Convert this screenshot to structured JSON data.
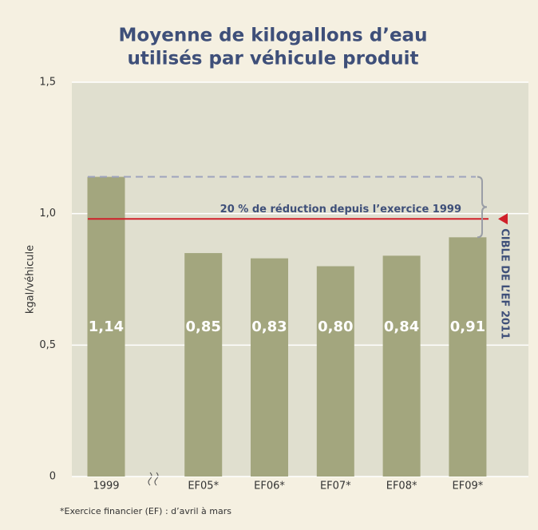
{
  "chart_data": {
    "type": "bar",
    "title": [
      "Moyenne de kilogallons d’eau",
      "utilisés par véhicule produit"
    ],
    "y_label": "kgal/véhicule",
    "categories": [
      "1999",
      "EF05*",
      "EF06*",
      "EF07*",
      "EF08*",
      "EF09*"
    ],
    "values": [
      1.14,
      0.85,
      0.83,
      0.8,
      0.84,
      0.91
    ],
    "value_labels": [
      "1,14",
      "0,85",
      "0,83",
      "0,80",
      "0,84",
      "0,91"
    ],
    "color": "#a3a67e",
    "ylim": [
      0,
      1.5
    ],
    "yticks": [
      0,
      {
        "value": 0.5,
        "label": "0,5"
      },
      {
        "value": 1,
        "label": "1,0"
      },
      {
        "value": 1.5,
        "label": "1,5"
      }
    ],
    "grid": true,
    "target": {
      "value": 0.98,
      "label": "CIBLE DE L’EF 2011",
      "color": "#d0202a"
    },
    "reduction_note": "20 % de réduction depuis l’exercice 1999",
    "footnote": "*Exercice financier (EF) : d’avril à mars"
  }
}
